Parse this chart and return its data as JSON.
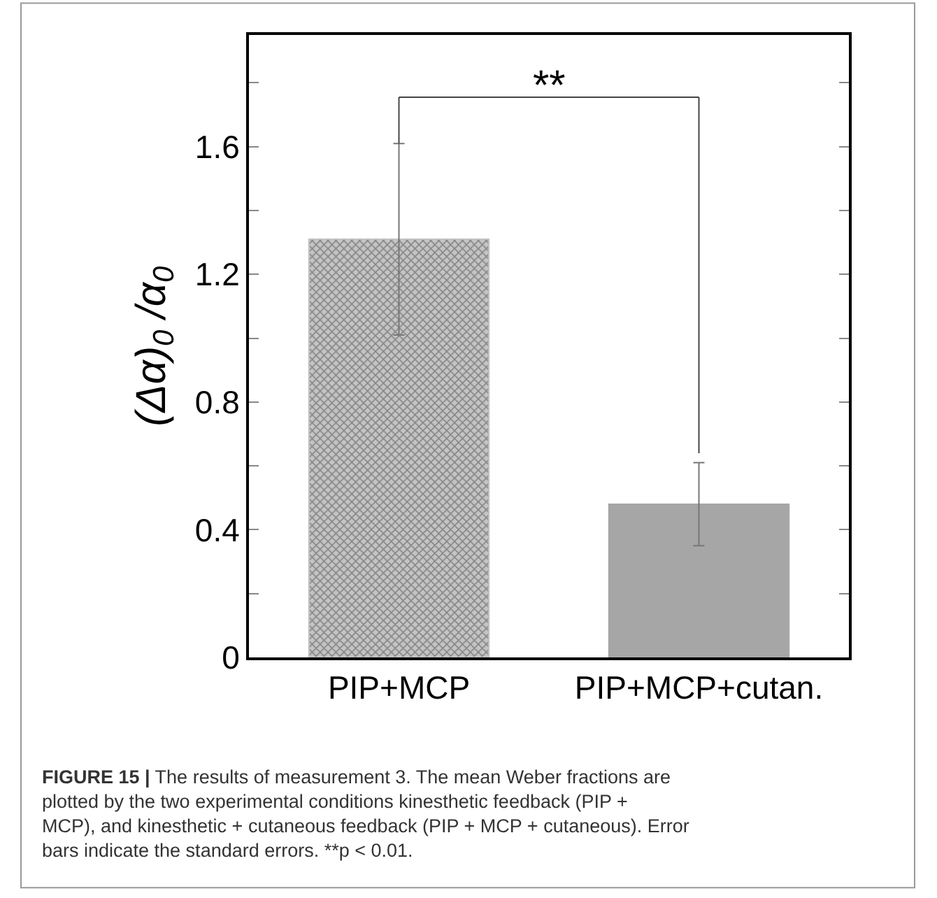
{
  "chart_data": {
    "type": "bar",
    "ylabel": "(Δα)$_{0}$ /α$_{0}$",
    "categories": [
      "PIP+MCP",
      "PIP+MCP+cutan."
    ],
    "values": [
      1.31,
      0.48
    ],
    "errors": [
      0.3,
      0.13
    ],
    "colors": [
      "#c4c4c4",
      "#a6a6a6"
    ],
    "ylim": [
      0,
      1.95
    ],
    "yticks": [
      0,
      {
        "value": 0.2,
        "label": null
      },
      0.4,
      {
        "value": 0.6,
        "label": null
      },
      0.8,
      {
        "value": 1.0,
        "label": null
      },
      1.2,
      {
        "value": 1.4,
        "label": null
      },
      1.6,
      {
        "value": 1.8,
        "label": null
      }
    ],
    "legend": false,
    "annotations": [
      "**",
      "FIGURE 15 | The results of measurement 3. The mean Weber fractions are plotted by the two experimental conditions kinesthetic feedback (PIP + MCP), and kinesthetic + cutaneous feedback (PIP + MCP + cutaneous). Error bars indicate the standard errors. **p < 0.01."
    ]
  }
}
